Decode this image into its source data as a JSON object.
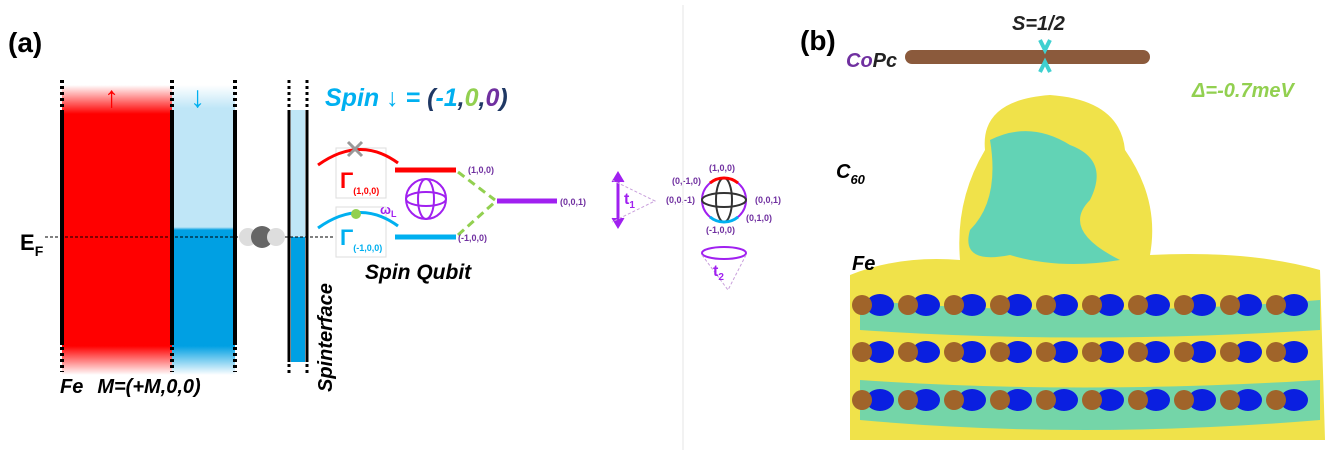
{
  "panel_a": {
    "label": "(a)",
    "up_arrow": "↑",
    "down_arrow": "↓",
    "spin_state": {
      "prefix": "Spin ↓ = ",
      "open": "(",
      "x": "-1",
      "sep1": ",",
      "y": "0",
      "sep2": ",",
      "z": "0",
      "close": ")"
    },
    "fermi": {
      "main": "E",
      "sub": "F"
    },
    "fe_label": "Fe",
    "magnetization": "M=(+M,0,0)",
    "spinterface": "Spinterface",
    "gamma_up": {
      "symbol": "Γ",
      "sub": "(1,0,0)"
    },
    "gamma_down": {
      "symbol": "Γ",
      "sub": "(-1,0,0)"
    },
    "larmor": {
      "symbol": "ω",
      "sub": "L"
    },
    "spin_qubit": "Spin Qubit",
    "levels": [
      "(1,0,0)",
      "(0,0,1)",
      "(-1,0,0)"
    ],
    "t1": {
      "main": "t",
      "sub": "1"
    },
    "t2": {
      "main": "t",
      "sub": "2"
    },
    "sphere_labels": [
      "(1,0,0)",
      "(0,-1,0)",
      "(0,0,-1)",
      "(0,0,1)",
      "(0,1,0)",
      "(-1,0,0)"
    ]
  },
  "panel_b": {
    "label": "(b)",
    "spin": "S=1/2",
    "molecule": {
      "co": "Co",
      "pc": "Pc"
    },
    "anisotropy": "Δ=-0.7meV",
    "c60": {
      "main": "C",
      "sub": "60"
    },
    "substrate": "Fe"
  }
}
